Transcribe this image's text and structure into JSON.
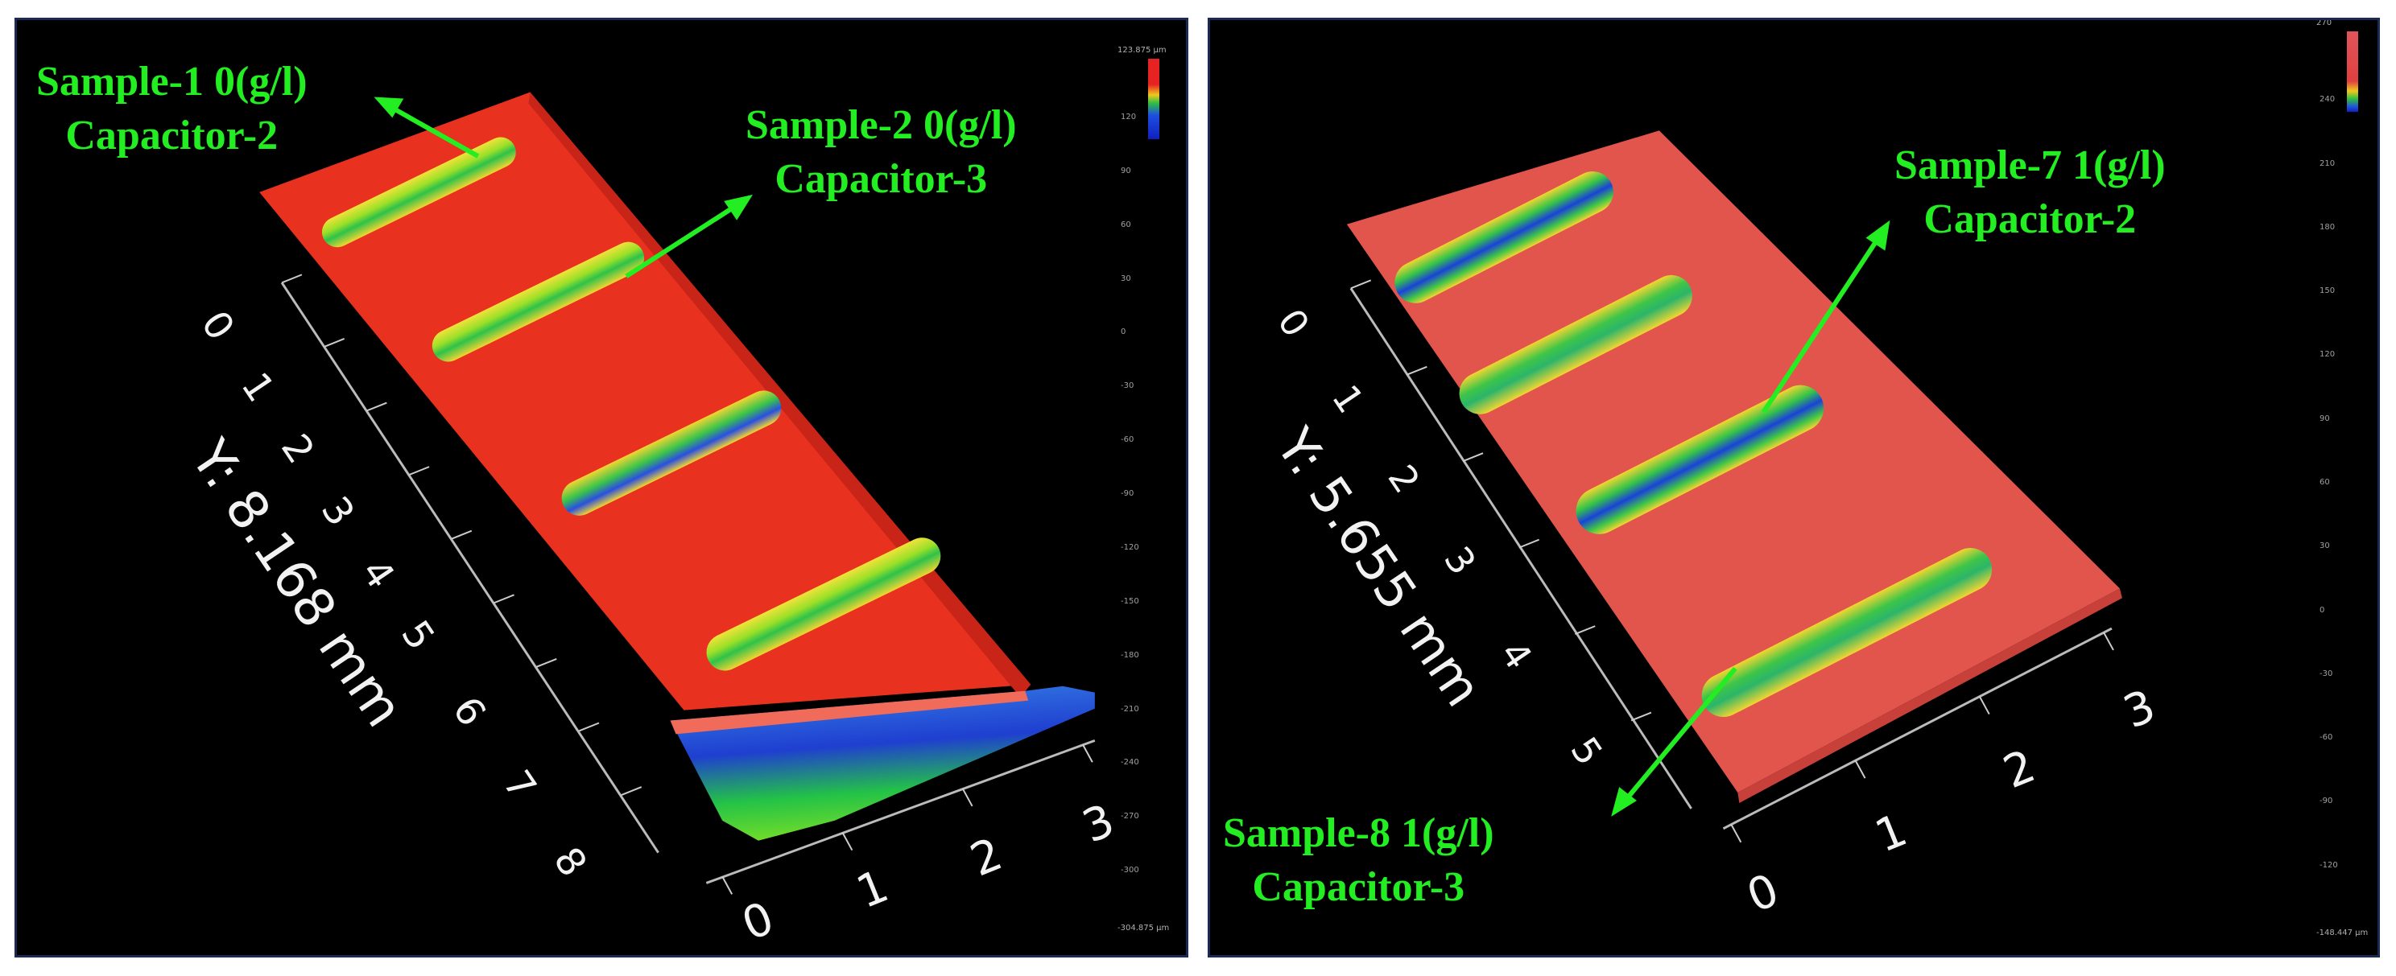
{
  "left_panel": {
    "labels": [
      {
        "line1": "Sample-1  0(g/l)",
        "line2": "Capacitor-2"
      },
      {
        "line1": "Sample-2  0(g/l)",
        "line2": "Capacitor-3"
      }
    ],
    "y_axis_title": "Y: 8.168 mm",
    "y_ticks": [
      "0",
      "1",
      "2",
      "3",
      "4",
      "5",
      "6",
      "7",
      "8"
    ],
    "x_ticks": [
      "0",
      "1",
      "2",
      "3"
    ],
    "scale": {
      "top": "123.875 µm",
      "bottom": "-304.875 µm",
      "ticks": [
        "120",
        "90",
        "60",
        "30",
        "0",
        "-30",
        "-60",
        "-90",
        "-120",
        "-150",
        "-180",
        "-210",
        "-240",
        "-270",
        "-300"
      ]
    }
  },
  "right_panel": {
    "labels": [
      {
        "line1": "Sample-7  1(g/l)",
        "line2": "Capacitor-2"
      },
      {
        "line1": "Sample-8  1(g/l)",
        "line2": "Capacitor-3"
      }
    ],
    "y_axis_title": "Y: 5.655 mm",
    "y_ticks": [
      "0",
      "1",
      "2",
      "3",
      "4",
      "5"
    ],
    "x_ticks": [
      "0",
      "1",
      "2",
      "3"
    ],
    "scale": {
      "top": "270",
      "bottom": "-148.447 µm",
      "ticks": [
        "240",
        "210",
        "180",
        "150",
        "120",
        "90",
        "60",
        "30",
        "0",
        "-30",
        "-60",
        "-90",
        "-120"
      ]
    }
  },
  "colors": {
    "label_green": "#22ee22",
    "surface_red": "#e8311f",
    "surface_pink": "#e2554c",
    "border": "#1a2a52"
  }
}
